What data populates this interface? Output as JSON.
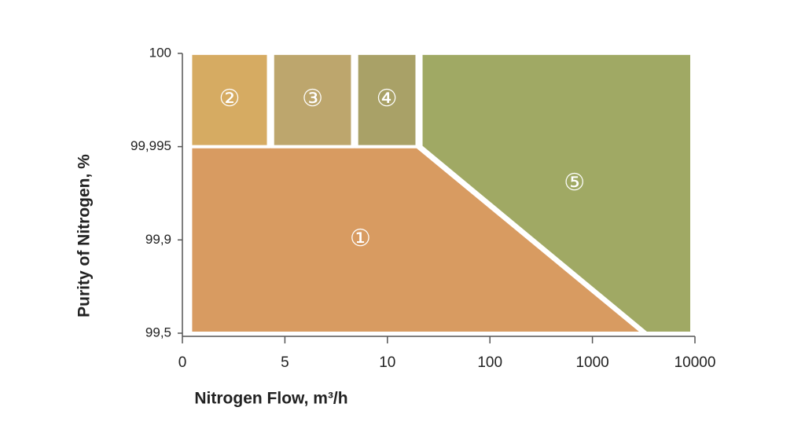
{
  "chart_data": {
    "type": "region",
    "xlabel": "Nitrogen Flow, m³/h",
    "ylabel": "Purity of Nitrogen, %",
    "xticks": [
      0,
      5,
      10,
      100,
      1000,
      10000
    ],
    "yticks": [
      {
        "value": 99.5,
        "label": "99,5"
      },
      {
        "value": 99.9,
        "label": "99,9"
      },
      {
        "value": 99.995,
        "label": "99,995"
      },
      100
    ],
    "xlim": [
      0,
      10000
    ],
    "ylim": [
      99.5,
      100
    ],
    "regions": [
      {
        "name": "①",
        "color": "#d89b61",
        "x": [
          0.4,
          36,
          5466,
          0.4
        ],
        "y": [
          99.995,
          99.995,
          99.5,
          99.5
        ]
      },
      {
        "name": "②",
        "color": "#d6ab62",
        "x": [
          0.4,
          4.2,
          4.2,
          0.4
        ],
        "y": [
          100,
          100,
          99.995,
          99.995
        ]
      },
      {
        "name": "③",
        "color": "#bda66d",
        "x": [
          4.4,
          8.3,
          8.3,
          4.4
        ],
        "y": [
          100,
          100,
          99.995,
          99.995
        ]
      },
      {
        "name": "④",
        "color": "#a9a167",
        "x": [
          8.5,
          36,
          36,
          8.5
        ],
        "y": [
          100,
          100,
          99.995,
          99.995
        ]
      },
      {
        "name": "⑤",
        "color": "#a0a964",
        "x": [
          39.5,
          9725,
          9725,
          5740,
          39.5
        ],
        "y": [
          100,
          100,
          99.5,
          99.5,
          99.995
        ]
      }
    ]
  }
}
